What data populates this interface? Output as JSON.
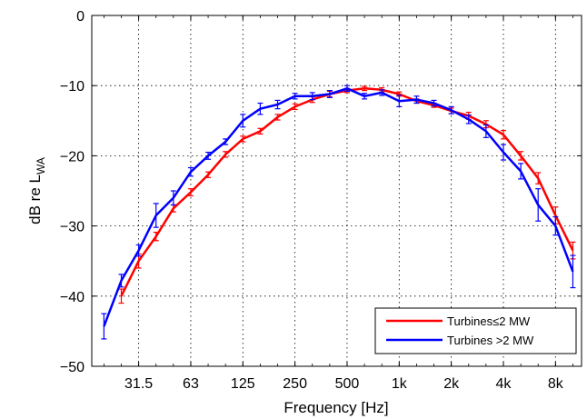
{
  "chart_data": {
    "type": "line",
    "xlabel": "Frequency [Hz]",
    "ylabel_main": "dB re L",
    "ylabel_sub": "WA",
    "ylim": [
      -50,
      0
    ],
    "yticks": [
      0,
      -10,
      -20,
      -30,
      -40,
      -50
    ],
    "xscale": "log2",
    "xticks": [
      {
        "pos": 0,
        "label": "31.5"
      },
      {
        "pos": 3,
        "label": "63"
      },
      {
        "pos": 6,
        "label": "125"
      },
      {
        "pos": 9,
        "label": "250"
      },
      {
        "pos": 12,
        "label": "500"
      },
      {
        "pos": 15,
        "label": "1k"
      },
      {
        "pos": 18,
        "label": "2k"
      },
      {
        "pos": 21,
        "label": "4k"
      },
      {
        "pos": 24,
        "label": "8k"
      }
    ],
    "x_positions": [
      -2,
      -1,
      0,
      1,
      2,
      3,
      4,
      5,
      6,
      7,
      8,
      9,
      10,
      11,
      12,
      13,
      14,
      15,
      16,
      17,
      18,
      19,
      20,
      21,
      22,
      23,
      24,
      25
    ],
    "grid": true,
    "legend_position": "bottom-right",
    "series": [
      {
        "name": "Turbines≤2 MW",
        "color": "#ff0000",
        "x": [
          -1,
          0,
          1,
          2,
          3,
          4,
          5,
          6,
          7,
          8,
          9,
          10,
          11,
          12,
          13,
          14,
          15,
          16,
          17,
          18,
          19,
          20,
          21,
          22,
          23,
          24,
          25
        ],
        "values": [
          -40.0,
          -35.0,
          -31.5,
          -27.5,
          -25.2,
          -22.7,
          -19.8,
          -17.6,
          -16.5,
          -14.5,
          -13.0,
          -12.0,
          -11.2,
          -10.7,
          -10.4,
          -10.6,
          -11.2,
          -12.2,
          -12.8,
          -13.6,
          -14.3,
          -15.5,
          -17.0,
          -20.0,
          -23.2,
          -28.5,
          -33.5
        ],
        "err": [
          1.0,
          1.0,
          0.6,
          0.5,
          0.5,
          0.4,
          0.4,
          0.4,
          0.4,
          0.4,
          0.4,
          0.4,
          0.4,
          0.3,
          0.3,
          0.3,
          0.3,
          0.3,
          0.3,
          0.4,
          0.5,
          0.5,
          0.6,
          0.6,
          0.8,
          1.2,
          1.2
        ]
      },
      {
        "name": "Turbines >2 MW",
        "color": "#0000ff",
        "x": [
          -2,
          -1,
          0,
          1,
          2,
          3,
          4,
          5,
          6,
          7,
          8,
          9,
          10,
          11,
          12,
          13,
          14,
          15,
          16,
          17,
          18,
          19,
          20,
          21,
          22,
          23,
          24,
          25
        ],
        "values": [
          -44.3,
          -37.8,
          -33.5,
          -28.5,
          -26.0,
          -22.3,
          -20.0,
          -18.0,
          -15.0,
          -13.3,
          -12.7,
          -11.5,
          -11.5,
          -11.2,
          -10.4,
          -11.5,
          -11.0,
          -12.2,
          -12.0,
          -12.5,
          -13.5,
          -14.8,
          -16.5,
          -19.5,
          -22.2,
          -27.0,
          -30.0,
          -36.5
        ],
        "err": [
          1.8,
          0.9,
          0.8,
          1.7,
          1.0,
          0.6,
          0.5,
          0.4,
          0.9,
          0.8,
          0.6,
          0.4,
          0.5,
          0.5,
          0.4,
          0.4,
          0.4,
          0.8,
          0.5,
          0.4,
          0.5,
          0.6,
          0.9,
          1.1,
          1.1,
          2.3,
          1.3,
          2.3
        ]
      }
    ]
  }
}
